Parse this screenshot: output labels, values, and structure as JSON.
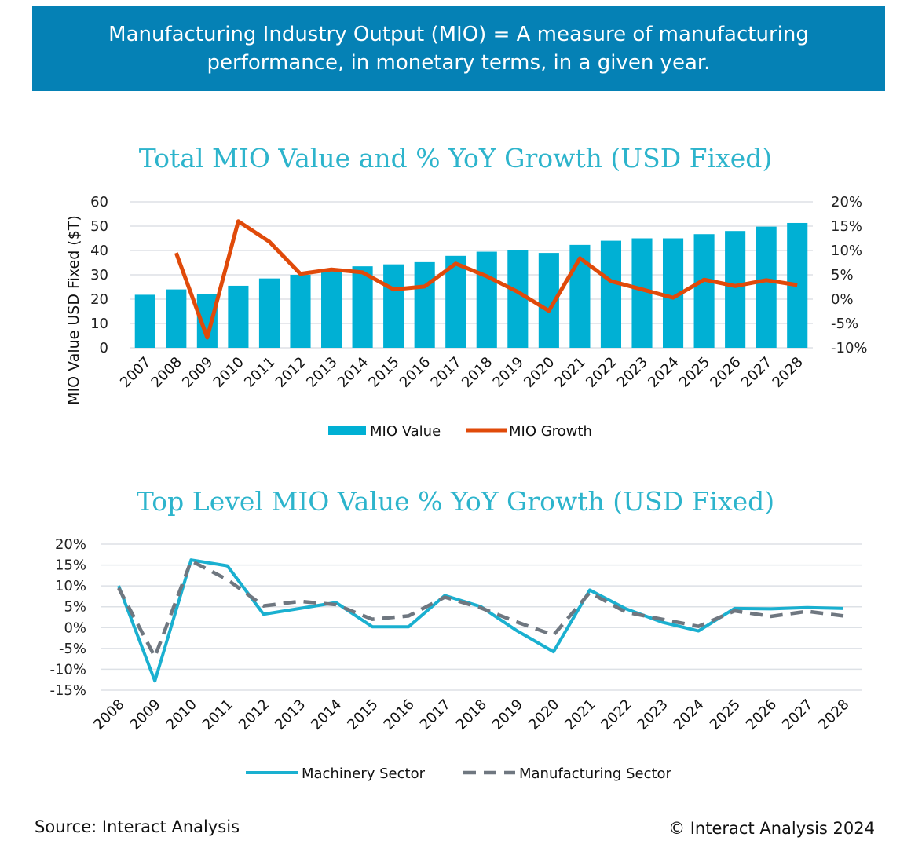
{
  "banner": {
    "line1": "Manufacturing Industry Output (MIO) = A measure of manufacturing",
    "line2": "performance, in monetary terms, in a given year."
  },
  "footer": {
    "source": "Source: Interact Analysis",
    "copyright": "© Interact Analysis 2024"
  },
  "colors": {
    "banner": "#0581b5",
    "title": "#2db4cc",
    "bar": "#00b0d4",
    "growth": "#e04a0a",
    "machinery": "#1ab0d0",
    "manufacturing": "#6f7780"
  },
  "chart_data": [
    {
      "type": "bar+line",
      "title": "Total MIO Value and % YoY Growth (USD Fixed)",
      "ylabel": "MIO Value USD Fixed ($T)",
      "ylim": [
        0,
        60
      ],
      "yticks": [
        "0",
        "10",
        "20",
        "30",
        "40",
        "50",
        "60"
      ],
      "y2lim": [
        -10,
        20
      ],
      "y2ticks": [
        "-10%",
        "-5%",
        "0%",
        "5%",
        "10%",
        "15%",
        "20%"
      ],
      "grid": true,
      "legend_placement": "bottom",
      "categories": [
        "2007",
        "2008",
        "2009",
        "2010",
        "2011",
        "2012",
        "2013",
        "2014",
        "2015",
        "2016",
        "2017",
        "2018",
        "2019",
        "2020",
        "2021",
        "2022",
        "2023",
        "2024",
        "2025",
        "2026",
        "2027",
        "2028"
      ],
      "series": [
        {
          "name": "MIO Value",
          "axis": "left",
          "kind": "bar",
          "values": [
            21.8,
            24,
            22,
            25.5,
            28.5,
            30,
            32.5,
            33.5,
            34.3,
            35.2,
            37.8,
            39.5,
            40,
            39,
            42.3,
            44,
            45,
            45,
            46.7,
            48,
            49.8,
            51.3
          ]
        },
        {
          "name": "MIO Growth",
          "axis": "right",
          "kind": "line",
          "values": [
            null,
            9.5,
            -7.9,
            16,
            11.8,
            5.2,
            6.1,
            5.5,
            2,
            2.6,
            7.3,
            4.7,
            1.5,
            -2.4,
            8.4,
            3.7,
            2,
            0.3,
            4,
            2.7,
            3.9,
            2.9
          ]
        }
      ]
    },
    {
      "type": "line",
      "title": "Top Level MIO Value % YoY Growth (USD Fixed)",
      "ylim": [
        -15,
        20
      ],
      "yticks": [
        "-15%",
        "-10%",
        "-5%",
        "0%",
        "5%",
        "10%",
        "15%",
        "20%"
      ],
      "grid": true,
      "legend_placement": "bottom",
      "categories": [
        "2008",
        "2009",
        "2010",
        "2011",
        "2012",
        "2013",
        "2014",
        "2015",
        "2016",
        "2017",
        "2018",
        "2019",
        "2020",
        "2021",
        "2022",
        "2023",
        "2024",
        "2025",
        "2026",
        "2027",
        "2028"
      ],
      "series": [
        {
          "name": "Machinery Sector",
          "style": "solid",
          "values": [
            10,
            -12.8,
            16.2,
            14.8,
            3.2,
            4.6,
            6,
            0.2,
            0.2,
            7.7,
            5,
            -0.8,
            -5.8,
            9,
            4.5,
            1.3,
            -0.8,
            4.6,
            4.5,
            4.8,
            4.6
          ]
        },
        {
          "name": "Manufacturing Sector",
          "style": "dashed",
          "values": [
            9.5,
            -7,
            16,
            11.5,
            5.2,
            6.3,
            5.5,
            2,
            2.8,
            7.3,
            4.7,
            1.3,
            -1.8,
            8.4,
            3.7,
            2,
            0.3,
            4,
            2.7,
            3.9,
            2.8
          ]
        }
      ]
    }
  ]
}
